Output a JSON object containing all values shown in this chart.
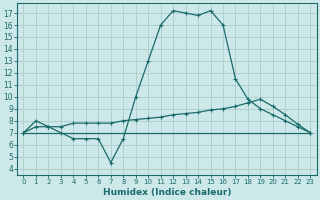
{
  "title": "",
  "xlabel": "Humidex (Indice chaleur)",
  "ylabel": "",
  "bg_color": "#cde8e8",
  "grid_color": "#b0d0d0",
  "line_color": "#1a6b6b",
  "xlim": [
    -0.5,
    23.5
  ],
  "ylim": [
    3.5,
    17.8
  ],
  "xticks": [
    0,
    1,
    2,
    3,
    4,
    5,
    6,
    7,
    8,
    9,
    10,
    11,
    12,
    13,
    14,
    15,
    16,
    17,
    18,
    19,
    20,
    21,
    22,
    23
  ],
  "yticks": [
    4,
    5,
    6,
    7,
    8,
    9,
    10,
    11,
    12,
    13,
    14,
    15,
    16,
    17
  ],
  "curve1_x": [
    0,
    1,
    2,
    3,
    4,
    5,
    6,
    7,
    8,
    9,
    10,
    11,
    12,
    13,
    14,
    15,
    16,
    17,
    18,
    19,
    20,
    21,
    22,
    23
  ],
  "curve1_y": [
    7,
    8,
    7.5,
    7,
    6.5,
    6.5,
    6.5,
    4.5,
    6.5,
    10,
    13,
    16,
    17.2,
    17,
    16.8,
    17.2,
    16,
    11.5,
    9.8,
    9,
    8.5,
    8,
    7.5,
    7
  ],
  "curve2_x": [
    0,
    1,
    2,
    3,
    4,
    5,
    6,
    7,
    8,
    9,
    10,
    11,
    12,
    13,
    14,
    15,
    16,
    17,
    18,
    19,
    20,
    21,
    22,
    23
  ],
  "curve2_y": [
    7,
    7.5,
    7.5,
    7.5,
    7.8,
    7.8,
    7.8,
    7.8,
    8.0,
    8.1,
    8.2,
    8.3,
    8.5,
    8.6,
    8.7,
    8.9,
    9.0,
    9.2,
    9.5,
    9.8,
    9.2,
    8.5,
    7.7,
    7.0
  ],
  "curve3_x": [
    0,
    23
  ],
  "curve3_y": [
    7,
    7
  ]
}
